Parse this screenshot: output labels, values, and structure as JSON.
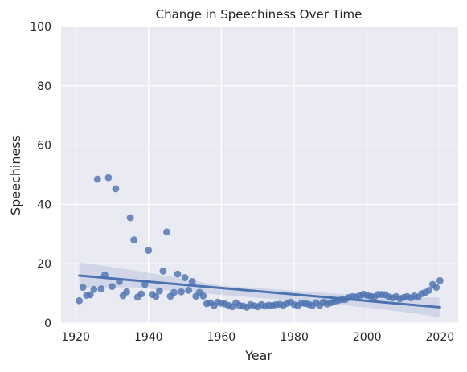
{
  "chart_data": {
    "type": "scatter",
    "title": "Change in Speechiness Over Time",
    "xlabel": "Year",
    "ylabel": "Speechiness",
    "xlim": [
      1916,
      2025
    ],
    "ylim": [
      0,
      100
    ],
    "x_ticks": [
      "1920",
      "1940",
      "1960",
      "1980",
      "2000",
      "2020"
    ],
    "y_ticks": [
      "0",
      "20",
      "40",
      "60",
      "80",
      "100"
    ],
    "grid": true,
    "background": "#eaeaf2",
    "point_color": "#4c72b0",
    "line_color": "#4c72b0",
    "band_color": "#4c72b0",
    "points": [
      [
        1921,
        7.5
      ],
      [
        1922,
        12.0
      ],
      [
        1923,
        9.3
      ],
      [
        1924,
        9.5
      ],
      [
        1925,
        11.3
      ],
      [
        1926,
        48.5
      ],
      [
        1927,
        11.5
      ],
      [
        1928,
        16.2
      ],
      [
        1929,
        49.0
      ],
      [
        1930,
        12.3
      ],
      [
        1931,
        45.3
      ],
      [
        1932,
        14.0
      ],
      [
        1933,
        9.2
      ],
      [
        1934,
        10.5
      ],
      [
        1935,
        35.5
      ],
      [
        1936,
        28.0
      ],
      [
        1937,
        8.7
      ],
      [
        1938,
        9.8
      ],
      [
        1939,
        13.0
      ],
      [
        1940,
        24.5
      ],
      [
        1941,
        9.6
      ],
      [
        1942,
        8.9
      ],
      [
        1943,
        10.8
      ],
      [
        1944,
        17.5
      ],
      [
        1945,
        30.7
      ],
      [
        1946,
        9.0
      ],
      [
        1947,
        10.3
      ],
      [
        1948,
        16.5
      ],
      [
        1949,
        10.5
      ],
      [
        1950,
        15.3
      ],
      [
        1951,
        11.0
      ],
      [
        1952,
        14.0
      ],
      [
        1953,
        9.0
      ],
      [
        1954,
        10.3
      ],
      [
        1955,
        9.1
      ],
      [
        1956,
        6.5
      ],
      [
        1957,
        6.8
      ],
      [
        1958,
        5.9
      ],
      [
        1959,
        7.0
      ],
      [
        1960,
        6.7
      ],
      [
        1961,
        6.4
      ],
      [
        1962,
        5.9
      ],
      [
        1963,
        5.5
      ],
      [
        1964,
        6.8
      ],
      [
        1965,
        5.9
      ],
      [
        1966,
        5.7
      ],
      [
        1967,
        5.3
      ],
      [
        1968,
        6.2
      ],
      [
        1969,
        5.8
      ],
      [
        1970,
        5.5
      ],
      [
        1971,
        6.2
      ],
      [
        1972,
        5.7
      ],
      [
        1973,
        6.0
      ],
      [
        1974,
        5.9
      ],
      [
        1975,
        6.2
      ],
      [
        1976,
        6.3
      ],
      [
        1977,
        6.0
      ],
      [
        1978,
        6.6
      ],
      [
        1979,
        7.0
      ],
      [
        1980,
        6.2
      ],
      [
        1981,
        5.9
      ],
      [
        1982,
        6.7
      ],
      [
        1983,
        6.6
      ],
      [
        1984,
        6.3
      ],
      [
        1985,
        5.9
      ],
      [
        1986,
        6.8
      ],
      [
        1987,
        6.0
      ],
      [
        1988,
        7.0
      ],
      [
        1989,
        6.4
      ],
      [
        1990,
        6.8
      ],
      [
        1991,
        7.2
      ],
      [
        1992,
        7.6
      ],
      [
        1993,
        7.9
      ],
      [
        1994,
        7.9
      ],
      [
        1995,
        8.6
      ],
      [
        1996,
        8.9
      ],
      [
        1997,
        8.8
      ],
      [
        1998,
        9.2
      ],
      [
        1999,
        9.7
      ],
      [
        2000,
        9.3
      ],
      [
        2001,
        9.0
      ],
      [
        2002,
        8.8
      ],
      [
        2003,
        9.6
      ],
      [
        2004,
        9.6
      ],
      [
        2005,
        9.5
      ],
      [
        2006,
        8.8
      ],
      [
        2007,
        8.5
      ],
      [
        2008,
        8.9
      ],
      [
        2009,
        8.2
      ],
      [
        2010,
        8.6
      ],
      [
        2011,
        8.9
      ],
      [
        2012,
        8.5
      ],
      [
        2013,
        9.1
      ],
      [
        2014,
        8.7
      ],
      [
        2015,
        9.9
      ],
      [
        2016,
        10.3
      ],
      [
        2017,
        11.0
      ],
      [
        2018,
        13.0
      ],
      [
        2019,
        12.0
      ],
      [
        2020,
        14.3
      ]
    ],
    "regression": {
      "x": [
        1921,
        2020
      ],
      "y": [
        16.0,
        5.3
      ]
    },
    "confidence_band": {
      "x": [
        1921,
        1935,
        1960,
        1990,
        2005,
        2020
      ],
      "lower": [
        12.0,
        12.0,
        9.5,
        6.5,
        4.5,
        2.0
      ],
      "upper": [
        20.5,
        18.0,
        12.6,
        10.0,
        9.0,
        8.5
      ]
    }
  }
}
